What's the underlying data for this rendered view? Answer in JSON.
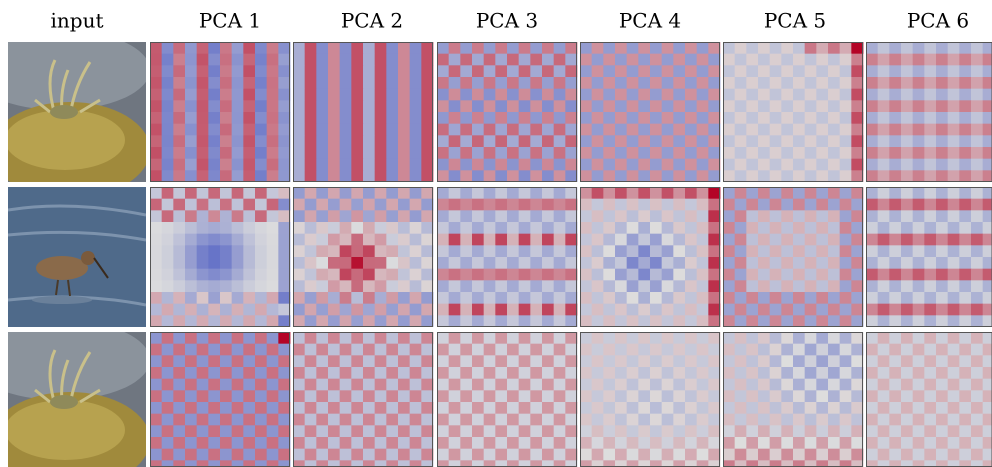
{
  "header": {
    "columns": [
      "input",
      "PCA 1",
      "PCA 2",
      "PCA 3",
      "PCA 4",
      "PCA 5",
      "PCA 6"
    ]
  }
}
